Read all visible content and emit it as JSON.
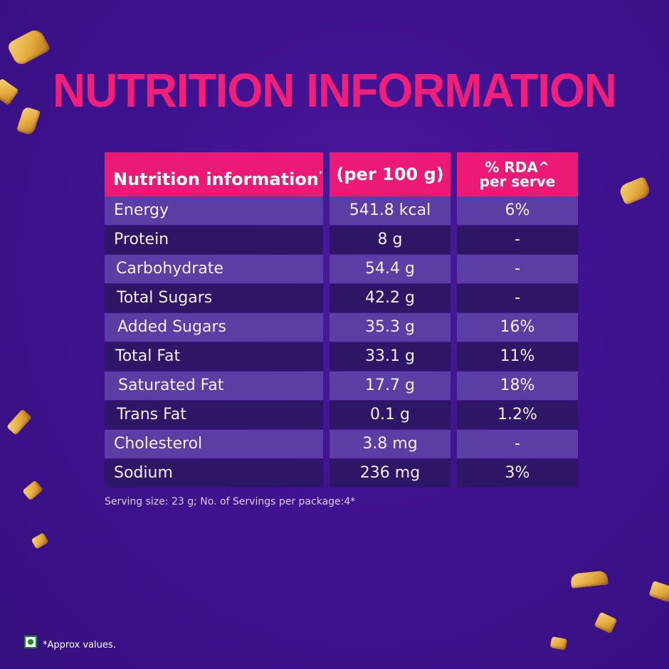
{
  "title": "NUTRITION INFORMATION",
  "table": {
    "header": {
      "col1": "Nutrition information",
      "col1_mark": "*",
      "col2": "(per 100 g)",
      "col3_line1": "% RDA^",
      "col3_line2": "per serve"
    },
    "rows": [
      {
        "name": "Energy",
        "per100": "541.8 kcal",
        "rda": "6%"
      },
      {
        "name": "Protein",
        "per100": "8 g",
        "rda": "-"
      },
      {
        "name": "Carbohydrate",
        "per100": "54.4 g",
        "rda": "-"
      },
      {
        "name": "Total Sugars",
        "per100": "42.2 g",
        "rda": "-"
      },
      {
        "name": "Added Sugars",
        "per100": "35.3 g",
        "rda": "16%"
      },
      {
        "name": "Total Fat",
        "per100": "33.1 g",
        "rda": "11%"
      },
      {
        "name": "Saturated Fat",
        "per100": "17.7 g",
        "rda": "18%"
      },
      {
        "name": "Trans Fat",
        "per100": "0.1 g",
        "rda": "1.2%"
      },
      {
        "name": "Cholesterol",
        "per100": "3.8 mg",
        "rda": "-"
      },
      {
        "name": "Sodium",
        "per100": "236 mg",
        "rda": "3%"
      }
    ]
  },
  "serving_note": "Serving size: 23 g; No. of Servings per package:4*",
  "approx_note": "*Approx values.",
  "colors": {
    "background": "#3f1290",
    "accent": "#ec1a76",
    "row_light": "#5a3ea3",
    "row_dark": "#2d1666"
  }
}
